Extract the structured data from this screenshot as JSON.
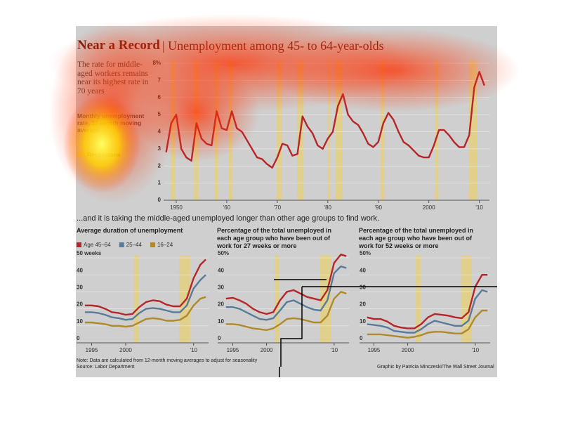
{
  "header": {
    "title": "Near a Record",
    "subtitle": "| Unemployment among 45- to 64-year-olds"
  },
  "section_subtitle": "...and it is taking the middle-aged unemployed longer than other age groups to find work.",
  "chart_data": [
    {
      "type": "line",
      "annotation": "The rate for middle-aged workers remains near its highest rate in 70 years",
      "description": "Monthly unemployment rate, 12-month moving average",
      "recession_label": "Recessions",
      "recession_color": "#e3cf7a",
      "x": [
        1948,
        1949,
        1950,
        1951,
        1952,
        1953,
        1954,
        1955,
        1956,
        1957,
        1958,
        1959,
        1960,
        1961,
        1962,
        1963,
        1964,
        1965,
        1966,
        1967,
        1968,
        1969,
        1970,
        1971,
        1972,
        1973,
        1974,
        1975,
        1976,
        1977,
        1978,
        1979,
        1980,
        1981,
        1982,
        1983,
        1984,
        1985,
        1986,
        1987,
        1988,
        1989,
        1990,
        1991,
        1992,
        1993,
        1994,
        1995,
        1996,
        1997,
        1998,
        1999,
        2000,
        2001,
        2002,
        2003,
        2004,
        2005,
        2006,
        2007,
        2008,
        2009,
        2010,
        2011
      ],
      "series": [
        {
          "color": "#b5252a",
          "values": [
            2.8,
            4.5,
            5.0,
            3.0,
            2.5,
            2.3,
            4.5,
            3.6,
            3.3,
            3.2,
            5.2,
            4.2,
            4.1,
            5.2,
            4.2,
            4.0,
            3.5,
            3.0,
            2.5,
            2.4,
            2.1,
            1.9,
            2.5,
            3.3,
            3.2,
            2.6,
            2.7,
            4.9,
            4.3,
            3.9,
            3.2,
            3.0,
            3.6,
            4.0,
            5.5,
            6.2,
            5.0,
            4.6,
            4.4,
            3.9,
            3.3,
            3.1,
            3.4,
            4.5,
            5.1,
            4.7,
            4.0,
            3.4,
            3.2,
            2.9,
            2.6,
            2.5,
            2.5,
            3.2,
            4.1,
            4.1,
            3.8,
            3.4,
            3.1,
            3.1,
            3.8,
            6.6,
            7.5,
            6.7
          ]
        }
      ],
      "recessions": [
        [
          1948.9,
          1949.8
        ],
        [
          1953.5,
          1954.4
        ],
        [
          1957.6,
          1958.3
        ],
        [
          1960.3,
          1961.1
        ],
        [
          1969.9,
          1970.9
        ],
        [
          1973.9,
          1975.2
        ],
        [
          1980.0,
          1980.5
        ],
        [
          1981.5,
          1982.9
        ],
        [
          1990.5,
          1991.2
        ],
        [
          2001.2,
          2001.9
        ],
        [
          2007.9,
          2009.5
        ]
      ],
      "xlim": [
        1947.5,
        2012
      ],
      "xticks": [
        {
          "value": 1950,
          "label": "1950"
        },
        {
          "value": 1960,
          "label": "'60"
        },
        {
          "value": 1970,
          "label": "'70"
        },
        {
          "value": 1980,
          "label": "'80"
        },
        {
          "value": 1990,
          "label": "'90"
        },
        {
          "value": 2000,
          "label": "2000"
        },
        {
          "value": 2010,
          "label": "'10"
        }
      ],
      "ylim": [
        0,
        8
      ],
      "yticks": [
        0,
        1,
        2,
        3,
        4,
        5,
        6,
        7,
        {
          "value": 8,
          "label": "8%"
        }
      ],
      "grid": true
    },
    {
      "type": "line",
      "title": "Average duration of unemployment",
      "legend": true,
      "recession_color": "#e3cf7a",
      "x": [
        1994,
        1995,
        1996,
        1997,
        1998,
        1999,
        2000,
        2001,
        2002,
        2003,
        2004,
        2005,
        2006,
        2007,
        2008,
        2009,
        2010,
        2011,
        2011.8
      ],
      "series": [
        {
          "name": "Age 45–64",
          "color": "#b5252a",
          "values": [
            22,
            22,
            21.5,
            20,
            18,
            17.5,
            16.5,
            17,
            21,
            24,
            25,
            24.5,
            22.5,
            21.5,
            21.5,
            26,
            38,
            46,
            49
          ]
        },
        {
          "name": "25–44",
          "color": "#5a7a9a",
          "values": [
            18,
            18,
            17.5,
            16.5,
            15,
            14.5,
            13.5,
            14,
            17.5,
            20,
            20.5,
            20,
            19,
            18,
            18,
            22,
            32,
            37,
            40
          ]
        },
        {
          "name": "16–24",
          "color": "#b08a2a",
          "values": [
            12,
            12,
            11.5,
            11,
            10,
            10,
            9.5,
            10,
            12,
            14,
            14.5,
            14,
            13,
            13,
            13.5,
            16,
            22,
            26,
            27
          ]
        }
      ],
      "recessions": [
        [
          2001.2,
          2001.9
        ],
        [
          2007.9,
          2009.5
        ]
      ],
      "xlim": [
        1993.6,
        2012.2
      ],
      "xticks": [
        1995,
        2000,
        {
          "value": 2010,
          "label": "'10"
        }
      ],
      "ylim": [
        0,
        50
      ],
      "yticks": [
        0,
        10,
        20,
        30,
        40,
        {
          "value": 50,
          "label": "50 weeks"
        }
      ],
      "grid": true
    },
    {
      "type": "line",
      "title": "Percentage of the total unemployed in each age group who have been out of work for 27 weeks or more",
      "recession_color": "#e3cf7a",
      "x": [
        1994,
        1995,
        1996,
        1997,
        1998,
        1999,
        2000,
        2001,
        2002,
        2003,
        2004,
        2005,
        2006,
        2007,
        2008,
        2009,
        2010,
        2011,
        2011.8
      ],
      "series": [
        {
          "color": "#b5252a",
          "values": [
            26,
            26.5,
            25,
            23,
            20,
            18,
            17,
            18,
            25,
            30,
            31,
            29,
            27,
            26,
            25,
            31,
            47,
            52,
            51
          ]
        },
        {
          "color": "#5a7a9a",
          "values": [
            21,
            21,
            20,
            18,
            16,
            14,
            13.5,
            14.5,
            19,
            24,
            25,
            23,
            21,
            19.5,
            19,
            25,
            41,
            45,
            44
          ]
        },
        {
          "color": "#b08a2a",
          "values": [
            11,
            11,
            10.5,
            9.5,
            8.5,
            8,
            7.5,
            8.5,
            11,
            14,
            14.5,
            14,
            13,
            12,
            12,
            16,
            26,
            30,
            29
          ]
        }
      ],
      "recessions": [
        [
          2001.2,
          2001.9
        ],
        [
          2007.9,
          2009.5
        ]
      ],
      "xlim": [
        1993.6,
        2012.2
      ],
      "xticks": [
        1995,
        2000,
        {
          "value": 2010,
          "label": "'10"
        }
      ],
      "ylim": [
        0,
        50
      ],
      "yticks": [
        0,
        10,
        20,
        30,
        40,
        {
          "value": 50,
          "label": "50%"
        }
      ],
      "grid": true
    },
    {
      "type": "line",
      "title": "Percentage of the total unemployed in each age group who have been out of work for 52 weeks or more",
      "recession_color": "#e3cf7a",
      "x": [
        1994,
        1995,
        1996,
        1997,
        1998,
        1999,
        2000,
        2001,
        2002,
        2003,
        2004,
        2005,
        2006,
        2007,
        2008,
        2009,
        2010,
        2011,
        2011.8
      ],
      "series": [
        {
          "color": "#b5252a",
          "values": [
            15,
            14,
            14,
            12.5,
            10,
            9,
            8.5,
            8.5,
            11,
            15,
            17,
            16.5,
            16,
            15,
            14.5,
            18,
            33,
            40,
            40
          ]
        },
        {
          "color": "#5a7a9a",
          "values": [
            11,
            10.5,
            10,
            9,
            7,
            6.5,
            6,
            6,
            8,
            11,
            13,
            12,
            11,
            10,
            10,
            13,
            26,
            31,
            30
          ]
        },
        {
          "color": "#b08a2a",
          "values": [
            5,
            5,
            5,
            4.5,
            4,
            3.5,
            3,
            3.5,
            4.5,
            6,
            6.5,
            6.5,
            6,
            5.5,
            5.5,
            8,
            15,
            19,
            19
          ]
        }
      ],
      "recessions": [
        [
          2001.2,
          2001.9
        ],
        [
          2007.9,
          2009.5
        ]
      ],
      "xlim": [
        1993.6,
        2012.2
      ],
      "xticks": [
        1995,
        2000,
        {
          "value": 2010,
          "label": "'10"
        }
      ],
      "ylim": [
        0,
        50
      ],
      "yticks": [
        0,
        10,
        20,
        30,
        40,
        {
          "value": 50,
          "label": "50%"
        }
      ],
      "grid": true
    }
  ],
  "footer": {
    "note": "Note: Data are calculated from 12-month moving averages to adjust for seasonality",
    "source": "Source: Labor Department",
    "credit": "Graphic by Patricia Minczeski/The Wall Street Journal"
  }
}
